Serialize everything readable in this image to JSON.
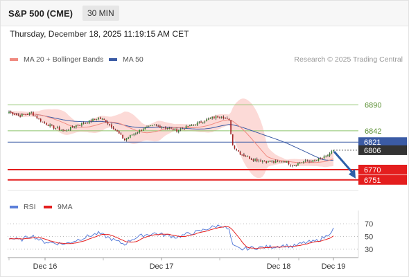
{
  "header": {
    "symbol": "S&P 500 (CME)",
    "interval": "30 MIN",
    "timestamp": "Thursday, December 18, 2025 11:19:15 AM CET"
  },
  "colors": {
    "bollinger_fill": "#fbd3d0",
    "ma20": "#f08a80",
    "ma50": "#3b5ba5",
    "resistance": "#8cc36a",
    "pivot": "#3b5ba5",
    "support": "#e41e1e",
    "candle_up": "#2f8a2f",
    "candle_down": "#a21d1d",
    "rsi": "#5b7fd9",
    "rsi_ma": "#e41e1e",
    "arrow": "#2e5fa8"
  },
  "chart_data": [
    {
      "type": "candlestick",
      "legend": [
        "MA 20 + Bollinger Bands",
        "MA 50"
      ],
      "source_note": "Research © 2025 Trading Central",
      "x_ticks": [
        "Dec 16",
        "Dec 17",
        "Dec 18",
        "Dec 19"
      ],
      "y_range": [
        6734,
        6924
      ],
      "grid": false,
      "levels": [
        {
          "value": 6890,
          "label": "6890",
          "role": "resistance"
        },
        {
          "value": 6842,
          "label": "6842",
          "role": "resistance"
        },
        {
          "value": 6821,
          "label": "6821",
          "role": "pivot"
        },
        {
          "value": 6806,
          "label": "6806",
          "role": "last_price"
        },
        {
          "value": 6770,
          "label": "6770",
          "role": "support"
        },
        {
          "value": 6751,
          "label": "6751",
          "role": "support"
        }
      ],
      "close_anchors": [
        [
          0,
          6877
        ],
        [
          6,
          6870
        ],
        [
          12,
          6875
        ],
        [
          18,
          6858
        ],
        [
          24,
          6848
        ],
        [
          30,
          6842
        ],
        [
          36,
          6852
        ],
        [
          42,
          6858
        ],
        [
          48,
          6866
        ],
        [
          52,
          6860
        ],
        [
          58,
          6840
        ],
        [
          62,
          6825
        ],
        [
          66,
          6835
        ],
        [
          72,
          6846
        ],
        [
          78,
          6852
        ],
        [
          84,
          6848
        ],
        [
          90,
          6843
        ],
        [
          96,
          6850
        ],
        [
          102,
          6857
        ],
        [
          108,
          6865
        ],
        [
          114,
          6870
        ],
        [
          118,
          6860
        ],
        [
          120,
          6815
        ],
        [
          124,
          6800
        ],
        [
          130,
          6790
        ],
        [
          136,
          6786
        ],
        [
          142,
          6784
        ],
        [
          148,
          6786
        ],
        [
          152,
          6778
        ],
        [
          158,
          6785
        ],
        [
          164,
          6786
        ],
        [
          170,
          6794
        ],
        [
          174,
          6806
        ]
      ],
      "forecast_arrow": {
        "from": 6806,
        "to": 6751,
        "direction": "down"
      }
    },
    {
      "type": "line",
      "legend": [
        "RSI",
        "9MA"
      ],
      "y_range": [
        20,
        80
      ],
      "y_ticks": [
        70,
        50,
        30
      ],
      "reference_line": 70,
      "rsi_anchors": [
        [
          0,
          48
        ],
        [
          6,
          44
        ],
        [
          12,
          52
        ],
        [
          18,
          42
        ],
        [
          24,
          40
        ],
        [
          30,
          38
        ],
        [
          36,
          44
        ],
        [
          42,
          50
        ],
        [
          48,
          55
        ],
        [
          52,
          50
        ],
        [
          58,
          42
        ],
        [
          62,
          38
        ],
        [
          66,
          46
        ],
        [
          72,
          52
        ],
        [
          78,
          55
        ],
        [
          84,
          52
        ],
        [
          90,
          49
        ],
        [
          96,
          54
        ],
        [
          102,
          58
        ],
        [
          108,
          64
        ],
        [
          114,
          68
        ],
        [
          118,
          60
        ],
        [
          120,
          35
        ],
        [
          124,
          30
        ],
        [
          130,
          32
        ],
        [
          136,
          33
        ],
        [
          142,
          34
        ],
        [
          148,
          36
        ],
        [
          152,
          34
        ],
        [
          158,
          40
        ],
        [
          164,
          42
        ],
        [
          170,
          50
        ],
        [
          174,
          62
        ]
      ]
    }
  ]
}
